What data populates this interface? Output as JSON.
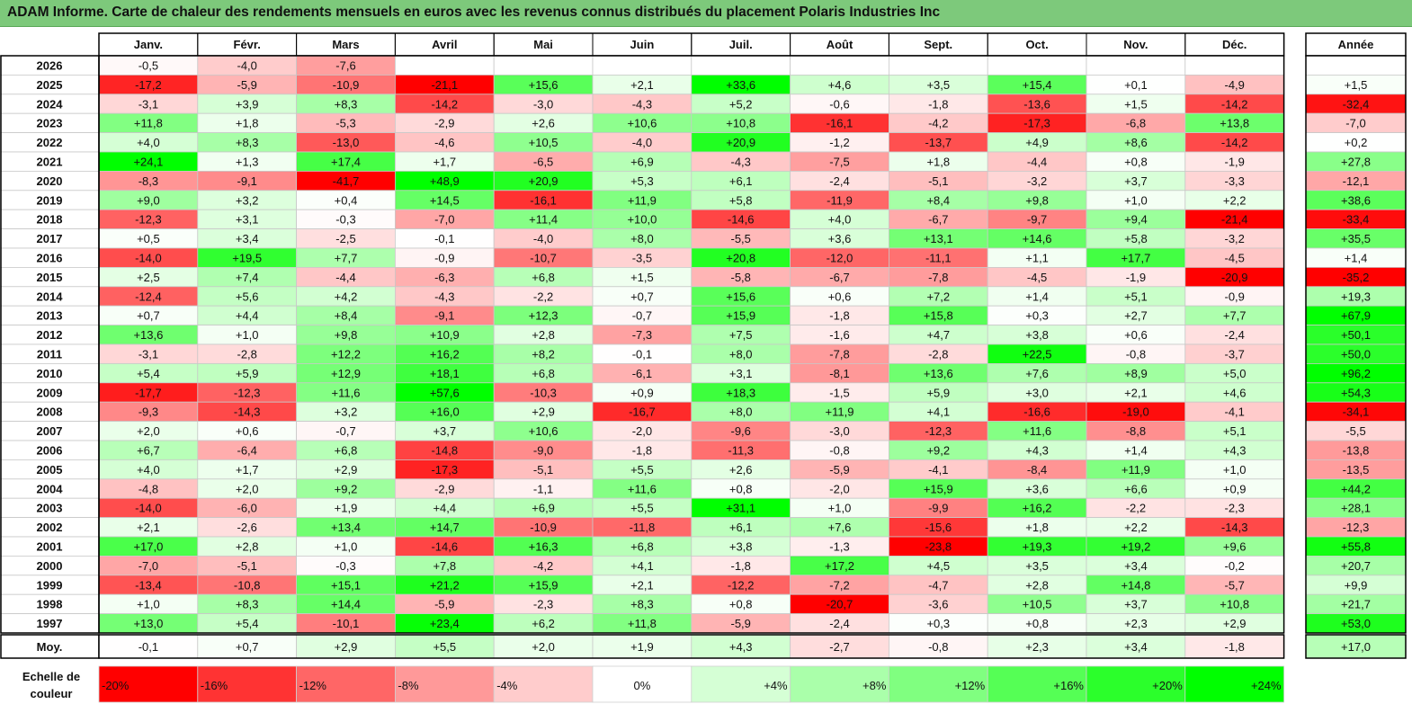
{
  "title": "ADAM Informe. Carte de chaleur des rendements mensuels en euros avec les revenus connus distribués du placement Polaris Industries Inc",
  "colors": {
    "title_bg": "#7dc97b",
    "negative_max": "#ff0000",
    "neutral": "#ffffff",
    "positive_max": "#00ff00"
  },
  "chart_data": {
    "type": "heatmap",
    "title": "ADAM Informe. Carte de chaleur des rendements mensuels en euros avec les revenus connus distribués du placement Polaris Industries Inc",
    "months": [
      "Janv.",
      "Févr.",
      "Mars",
      "Avril",
      "Mai",
      "Juin",
      "Juil.",
      "Août",
      "Sept.",
      "Oct.",
      "Nov.",
      "Déc."
    ],
    "year_header": "Année",
    "avg_label": "Moy.",
    "rows": [
      {
        "year": "2026",
        "values": [
          "-0,5",
          "-4,0",
          "-7,6",
          "",
          "",
          "",
          "",
          "",
          "",
          "",
          "",
          ""
        ],
        "annual": ""
      },
      {
        "year": "2025",
        "values": [
          "-17,2",
          "-5,9",
          "-10,9",
          "-21,1",
          "+15,6",
          "+2,1",
          "+33,6",
          "+4,6",
          "+3,5",
          "+15,4",
          "+0,1",
          "-4,9"
        ],
        "annual": "+1,5"
      },
      {
        "year": "2024",
        "values": [
          "-3,1",
          "+3,9",
          "+8,3",
          "-14,2",
          "-3,0",
          "-4,3",
          "+5,2",
          "-0,6",
          "-1,8",
          "-13,6",
          "+1,5",
          "-14,2"
        ],
        "annual": "-32,4"
      },
      {
        "year": "2023",
        "values": [
          "+11,8",
          "+1,8",
          "-5,3",
          "-2,9",
          "+2,6",
          "+10,6",
          "+10,8",
          "-16,1",
          "-4,2",
          "-17,3",
          "-6,8",
          "+13,8"
        ],
        "annual": "-7,0"
      },
      {
        "year": "2022",
        "values": [
          "+4,0",
          "+8,3",
          "-13,0",
          "-4,6",
          "+10,5",
          "-4,0",
          "+20,9",
          "-1,2",
          "-13,7",
          "+4,9",
          "+8,6",
          "-14,2"
        ],
        "annual": "+0,2"
      },
      {
        "year": "2021",
        "values": [
          "+24,1",
          "+1,3",
          "+17,4",
          "+1,7",
          "-6,5",
          "+6,9",
          "-4,3",
          "-7,5",
          "+1,8",
          "-4,4",
          "+0,8",
          "-1,9"
        ],
        "annual": "+27,8"
      },
      {
        "year": "2020",
        "values": [
          "-8,3",
          "-9,1",
          "-41,7",
          "+48,9",
          "+20,9",
          "+5,3",
          "+6,1",
          "-2,4",
          "-5,1",
          "-3,2",
          "+3,7",
          "-3,3"
        ],
        "annual": "-12,1"
      },
      {
        "year": "2019",
        "values": [
          "+9,0",
          "+3,2",
          "+0,4",
          "+14,5",
          "-16,1",
          "+11,9",
          "+5,8",
          "-11,9",
          "+8,4",
          "+9,8",
          "+1,0",
          "+2,2"
        ],
        "annual": "+38,6"
      },
      {
        "year": "2018",
        "values": [
          "-12,3",
          "+3,1",
          "-0,3",
          "-7,0",
          "+11,4",
          "+10,0",
          "-14,6",
          "+4,0",
          "-6,7",
          "-9,7",
          "+9,4",
          "-21,4"
        ],
        "annual": "-33,4"
      },
      {
        "year": "2017",
        "values": [
          "+0,5",
          "+3,4",
          "-2,5",
          "-0,1",
          "-4,0",
          "+8,0",
          "-5,5",
          "+3,6",
          "+13,1",
          "+14,6",
          "+5,8",
          "-3,2"
        ],
        "annual": "+35,5"
      },
      {
        "year": "2016",
        "values": [
          "-14,0",
          "+19,5",
          "+7,7",
          "-0,9",
          "-10,7",
          "-3,5",
          "+20,8",
          "-12,0",
          "-11,1",
          "+1,1",
          "+17,7",
          "-4,5"
        ],
        "annual": "+1,4"
      },
      {
        "year": "2015",
        "values": [
          "+2,5",
          "+7,4",
          "-4,4",
          "-6,3",
          "+6,8",
          "+1,5",
          "-5,8",
          "-6,7",
          "-7,8",
          "-4,5",
          "-1,9",
          "-20,9"
        ],
        "annual": "-35,2"
      },
      {
        "year": "2014",
        "values": [
          "-12,4",
          "+5,6",
          "+4,2",
          "-4,3",
          "-2,2",
          "+0,7",
          "+15,6",
          "+0,6",
          "+7,2",
          "+1,4",
          "+5,1",
          "-0,9"
        ],
        "annual": "+19,3"
      },
      {
        "year": "2013",
        "values": [
          "+0,7",
          "+4,4",
          "+8,4",
          "-9,1",
          "+12,3",
          "-0,7",
          "+15,9",
          "-1,8",
          "+15,8",
          "+0,3",
          "+2,7",
          "+7,7"
        ],
        "annual": "+67,9"
      },
      {
        "year": "2012",
        "values": [
          "+13,6",
          "+1,0",
          "+9,8",
          "+10,9",
          "+2,8",
          "-7,3",
          "+7,5",
          "-1,6",
          "+4,7",
          "+3,8",
          "+0,6",
          "-2,4"
        ],
        "annual": "+50,1"
      },
      {
        "year": "2011",
        "values": [
          "-3,1",
          "-2,8",
          "+12,2",
          "+16,2",
          "+8,2",
          "-0,1",
          "+8,0",
          "-7,8",
          "-2,8",
          "+22,5",
          "-0,8",
          "-3,7"
        ],
        "annual": "+50,0"
      },
      {
        "year": "2010",
        "values": [
          "+5,4",
          "+5,9",
          "+12,9",
          "+18,1",
          "+6,8",
          "-6,1",
          "+3,1",
          "-8,1",
          "+13,6",
          "+7,6",
          "+8,9",
          "+5,0"
        ],
        "annual": "+96,2"
      },
      {
        "year": "2009",
        "values": [
          "-17,7",
          "-12,3",
          "+11,6",
          "+57,6",
          "-10,3",
          "+0,9",
          "+18,3",
          "-1,5",
          "+5,9",
          "+3,0",
          "+2,1",
          "+4,6"
        ],
        "annual": "+54,3"
      },
      {
        "year": "2008",
        "values": [
          "-9,3",
          "-14,3",
          "+3,2",
          "+16,0",
          "+2,9",
          "-16,7",
          "+8,0",
          "+11,9",
          "+4,1",
          "-16,6",
          "-19,0",
          "-4,1"
        ],
        "annual": "-34,1"
      },
      {
        "year": "2007",
        "values": [
          "+2,0",
          "+0,6",
          "-0,7",
          "+3,7",
          "+10,6",
          "-2,0",
          "-9,6",
          "-3,0",
          "-12,3",
          "+11,6",
          "-8,8",
          "+5,1"
        ],
        "annual": "-5,5"
      },
      {
        "year": "2006",
        "values": [
          "+6,7",
          "-6,4",
          "+6,8",
          "-14,8",
          "-9,0",
          "-1,8",
          "-11,3",
          "-0,8",
          "+9,2",
          "+4,3",
          "+1,4",
          "+4,3"
        ],
        "annual": "-13,8"
      },
      {
        "year": "2005",
        "values": [
          "+4,0",
          "+1,7",
          "+2,9",
          "-17,3",
          "-5,1",
          "+5,5",
          "+2,6",
          "-5,9",
          "-4,1",
          "-8,4",
          "+11,9",
          "+1,0"
        ],
        "annual": "-13,5"
      },
      {
        "year": "2004",
        "values": [
          "-4,8",
          "+2,0",
          "+9,2",
          "-2,9",
          "-1,1",
          "+11,6",
          "+0,8",
          "-2,0",
          "+15,9",
          "+3,6",
          "+6,6",
          "+0,9"
        ],
        "annual": "+44,2"
      },
      {
        "year": "2003",
        "values": [
          "-14,0",
          "-6,0",
          "+1,9",
          "+4,4",
          "+6,9",
          "+5,5",
          "+31,1",
          "+1,0",
          "-9,9",
          "+16,2",
          "-2,2",
          "-2,3"
        ],
        "annual": "+28,1"
      },
      {
        "year": "2002",
        "values": [
          "+2,1",
          "-2,6",
          "+13,4",
          "+14,7",
          "-10,9",
          "-11,8",
          "+6,1",
          "+7,6",
          "-15,6",
          "+1,8",
          "+2,2",
          "-14,3"
        ],
        "annual": "-12,3"
      },
      {
        "year": "2001",
        "values": [
          "+17,0",
          "+2,8",
          "+1,0",
          "-14,6",
          "+16,3",
          "+6,8",
          "+3,8",
          "-1,3",
          "-23,8",
          "+19,3",
          "+19,2",
          "+9,6"
        ],
        "annual": "+55,8"
      },
      {
        "year": "2000",
        "values": [
          "-7,0",
          "-5,1",
          "-0,3",
          "+7,8",
          "-4,2",
          "+4,1",
          "-1,8",
          "+17,2",
          "+4,5",
          "+3,5",
          "+3,4",
          "-0,2"
        ],
        "annual": "+20,7"
      },
      {
        "year": "1999",
        "values": [
          "-13,4",
          "-10,8",
          "+15,1",
          "+21,2",
          "+15,9",
          "+2,1",
          "-12,2",
          "-7,2",
          "-4,7",
          "+2,8",
          "+14,8",
          "-5,7"
        ],
        "annual": "+9,9"
      },
      {
        "year": "1998",
        "values": [
          "+1,0",
          "+8,3",
          "+14,4",
          "-5,9",
          "-2,3",
          "+8,3",
          "+0,8",
          "-20,7",
          "-3,6",
          "+10,5",
          "+3,7",
          "+10,8"
        ],
        "annual": "+21,7"
      },
      {
        "year": "1997",
        "values": [
          "+13,0",
          "+5,4",
          "-10,1",
          "+23,4",
          "+6,2",
          "+11,8",
          "-5,9",
          "-2,4",
          "+0,3",
          "+0,8",
          "+2,3",
          "+2,9"
        ],
        "annual": "+53,0"
      }
    ],
    "average": {
      "values": [
        "-0,1",
        "+0,7",
        "+2,9",
        "+5,5",
        "+2,0",
        "+1,9",
        "+4,3",
        "-2,7",
        "-0,8",
        "+2,3",
        "+3,4",
        "-1,8"
      ],
      "annual": "+17,0"
    },
    "color_scale": {
      "label_line1": "Echelle de",
      "label_line2": "couleur",
      "steps": [
        "-20%",
        "-16%",
        "-12%",
        "-8%",
        "-4%",
        "0%",
        "+4%",
        "+8%",
        "+12%",
        "+16%",
        "+20%",
        "+24%"
      ]
    }
  }
}
